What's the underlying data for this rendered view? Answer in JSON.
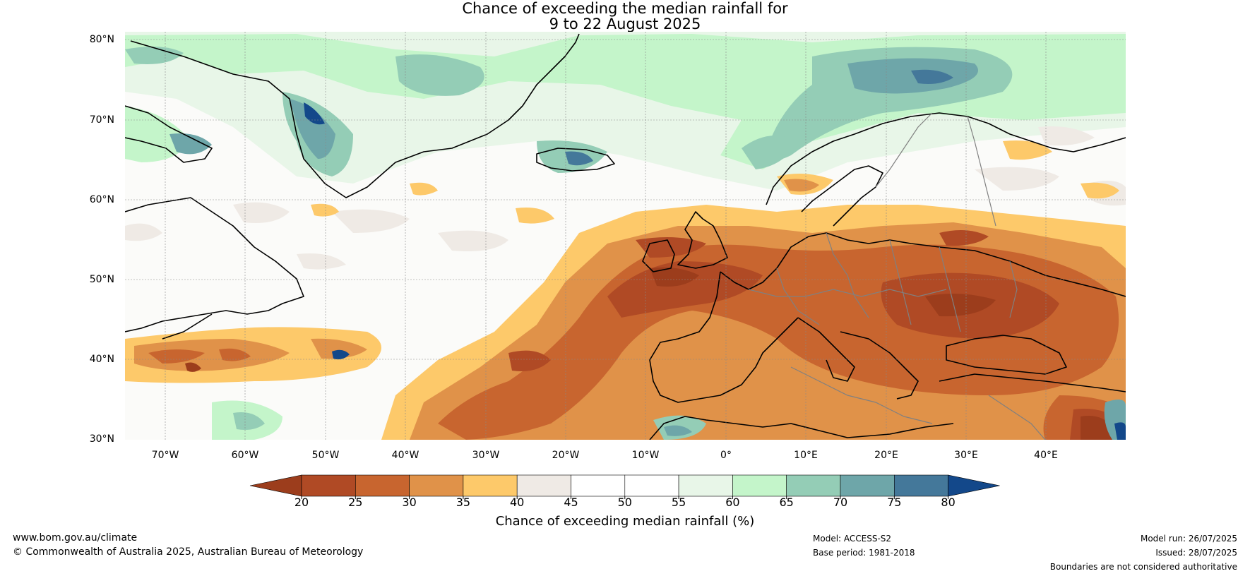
{
  "title": {
    "line1": "Chance of exceeding the median rainfall for",
    "line2": "9 to 22 August 2025"
  },
  "map": {
    "latitude_labels": [
      "80°N",
      "70°N",
      "60°N",
      "50°N",
      "40°N",
      "30°N"
    ],
    "longitude_labels": [
      "70°W",
      "60°W",
      "50°W",
      "40°W",
      "30°W",
      "20°W",
      "10°W",
      "0°",
      "10°E",
      "20°E",
      "30°E",
      "40°E"
    ],
    "lon_range": [
      -75,
      50
    ],
    "lat_range": [
      30,
      81
    ]
  },
  "colorbar": {
    "ticks": [
      "20",
      "25",
      "30",
      "35",
      "40",
      "45",
      "50",
      "55",
      "60",
      "65",
      "70",
      "75",
      "80"
    ],
    "colors": [
      "#9c3d1c",
      "#b04a25",
      "#c8652f",
      "#e09249",
      "#fdc96a",
      "#efeae5",
      "#ffffff",
      "#ffffff",
      "#e8f6e8",
      "#c4f5ca",
      "#94cdb6",
      "#6ea6a9",
      "#44789a",
      "#13488a"
    ],
    "label": "Chance of exceeding median rainfall (%)"
  },
  "footer": {
    "website": "www.bom.gov.au/climate",
    "copyright": "© Commonwealth of Australia 2025, Australian Bureau of Meteorology",
    "model": "Model: ACCESS-S2",
    "base_period": "Base period: 1981-2018",
    "model_run": "Model run: 26/07/2025",
    "issued": "Issued: 28/07/2025",
    "disclaimer": "Boundaries are not considered authoritative"
  }
}
